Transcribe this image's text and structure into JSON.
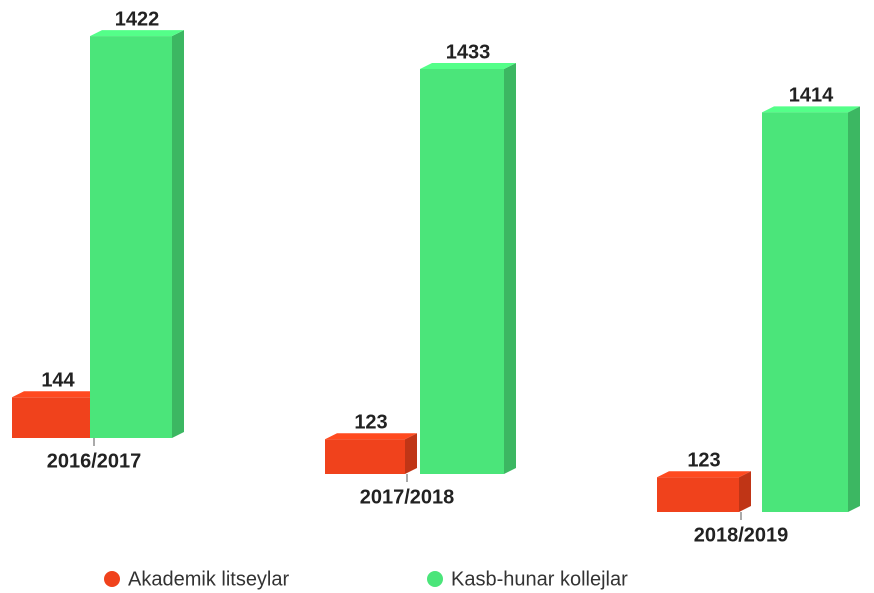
{
  "chart_data": {
    "type": "bar3d",
    "categories": [
      "2016/2017",
      "2017/2018",
      "2018/2019"
    ],
    "series": [
      {
        "name": "Akademik litseylar",
        "color": "#f0421c",
        "values": [
          144,
          123,
          123
        ]
      },
      {
        "name": "Kasb-hunar kollejlar",
        "color": "#4be57a",
        "values": [
          1422,
          1433,
          1414
        ]
      }
    ],
    "legend": "bottom"
  }
}
